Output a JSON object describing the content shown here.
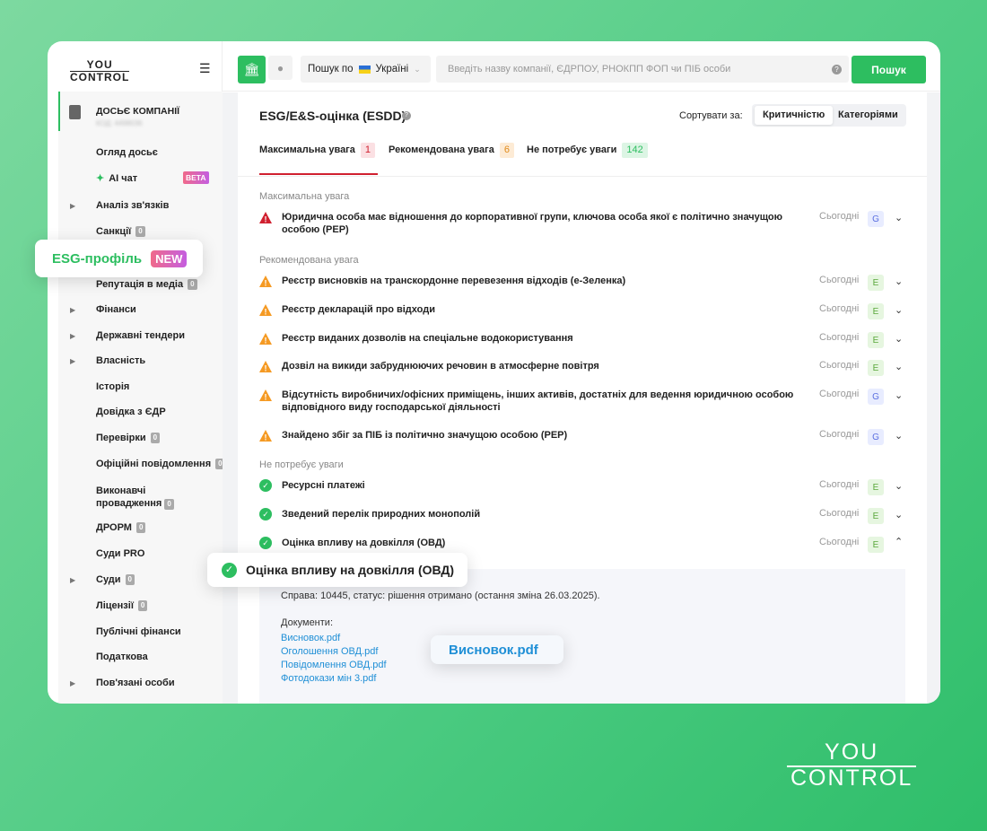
{
  "brand": {
    "logo_top": "YOU",
    "logo_bottom": "CONTROL"
  },
  "search": {
    "scope_label": "Пошук по",
    "country": "Україні",
    "placeholder": "Введіть назву компанії, ЄДРПОУ, РНОКПП ФОП чи ПІБ особи",
    "button": "Пошук"
  },
  "sidebar": {
    "dossier_title": "ДОСЬЄ КОМПАНІЇ",
    "dossier_code": "КОД: 4498036",
    "items": [
      {
        "label": "Огляд досьє"
      },
      {
        "label": "AI чат",
        "badge": "BETA"
      },
      {
        "label": "Аналіз зв'язків",
        "expandable": true
      },
      {
        "label": "Санкції",
        "count": "0"
      },
      {
        "label": "Репутація в медіа",
        "count": "0"
      },
      {
        "label": "Фінанси",
        "expandable": true
      },
      {
        "label": "Державні тендери",
        "expandable": true
      },
      {
        "label": "Власність",
        "expandable": true
      },
      {
        "label": "Історія"
      },
      {
        "label": "Довідка з ЄДР"
      },
      {
        "label": "Перевірки",
        "count": "0"
      },
      {
        "label": "Офіційні повідомлення",
        "count": "0"
      },
      {
        "label": "Виконавчі",
        "label2": "провадження",
        "count": "0"
      },
      {
        "label": "ДРОРМ",
        "count": "0"
      },
      {
        "label": "Суди PRO"
      },
      {
        "label": "Суди",
        "count": "0",
        "expandable": true
      },
      {
        "label": "Ліцензії",
        "count": "0"
      },
      {
        "label": "Публічні фінанси"
      },
      {
        "label": "Податкова"
      },
      {
        "label": "Пов'язані особи",
        "expandable": true
      }
    ]
  },
  "header": {
    "title": "ESG/E&S-оцінка (ESDD)",
    "sort_label": "Сортувати за:",
    "sort_options": [
      "Критичністю",
      "Категоріями"
    ],
    "sort_selected": "Критичністю"
  },
  "tabs": [
    {
      "label": "Максимальна увага",
      "count": "1"
    },
    {
      "label": "Рекомендована увага",
      "count": "6"
    },
    {
      "label": "Не потребує уваги",
      "count": "142"
    }
  ],
  "sections": [
    {
      "title": "Максимальна увага",
      "rows": [
        {
          "text": "Юридична особа має відношення до корпоративної групи, ключова особа якої є політично значущою",
          "text2": "особою (PEP)",
          "date": "Сьогодні",
          "cat": "G"
        }
      ]
    },
    {
      "title": "Рекомендована увага",
      "rows": [
        {
          "text": "Реєстр висновків на транскордонне перевезення відходів (е-Зеленка)",
          "date": "Сьогодні",
          "cat": "E"
        },
        {
          "text": "Реєстр декларацій про відходи",
          "date": "Сьогодні",
          "cat": "E"
        },
        {
          "text": "Реєстр виданих дозволів на спеціальне водокористування",
          "date": "Сьогодні",
          "cat": "E"
        },
        {
          "text": "Дозвіл на викиди забруднюючих речовин в атмосферне повітря",
          "date": "Сьогодні",
          "cat": "E"
        },
        {
          "text": "Відсутність виробничих/офісних приміщень, інших активів, достатніх для ведення юридичною особою",
          "text2": "відповідного виду господарської діяльності",
          "date": "Сьогодні",
          "cat": "G"
        },
        {
          "text": "Знайдено збіг за ПІБ із політично значущою особою (PEP)",
          "date": "Сьогодні",
          "cat": "G"
        }
      ]
    },
    {
      "title": "Не потребує уваги",
      "rows": [
        {
          "text": "Ресурсні платежі",
          "date": "Сьогодні",
          "cat": "E"
        },
        {
          "text": "Зведений перелік природних монополій",
          "date": "Сьогодні",
          "cat": "E"
        },
        {
          "text": "Оцінка впливу на довкілля (ОВД)",
          "date": "Сьогодні",
          "cat": "E",
          "expanded": true
        }
      ]
    }
  ],
  "details": {
    "case": "Справа: 10445, статус: рішення отримано (остання зміна 26.03.2025).",
    "docs_label": "Документи:",
    "docs": [
      "Висновок.pdf",
      "Оголошення ОВД.pdf",
      "Повідомлення ОВД.pdf",
      "Фотодокази мін 3.pdf"
    ]
  },
  "callouts": {
    "esg_profile": "ESG-профіль",
    "esg_badge": "NEW",
    "ovd": "Оцінка впливу на довкілля (ОВД)",
    "doc": "Висновок.pdf"
  },
  "colors": {
    "accent": "#2dbe60",
    "critical": "#d0202f",
    "warning": "#f59a23",
    "ok": "#2dbe60",
    "link": "#1f8fd6"
  }
}
